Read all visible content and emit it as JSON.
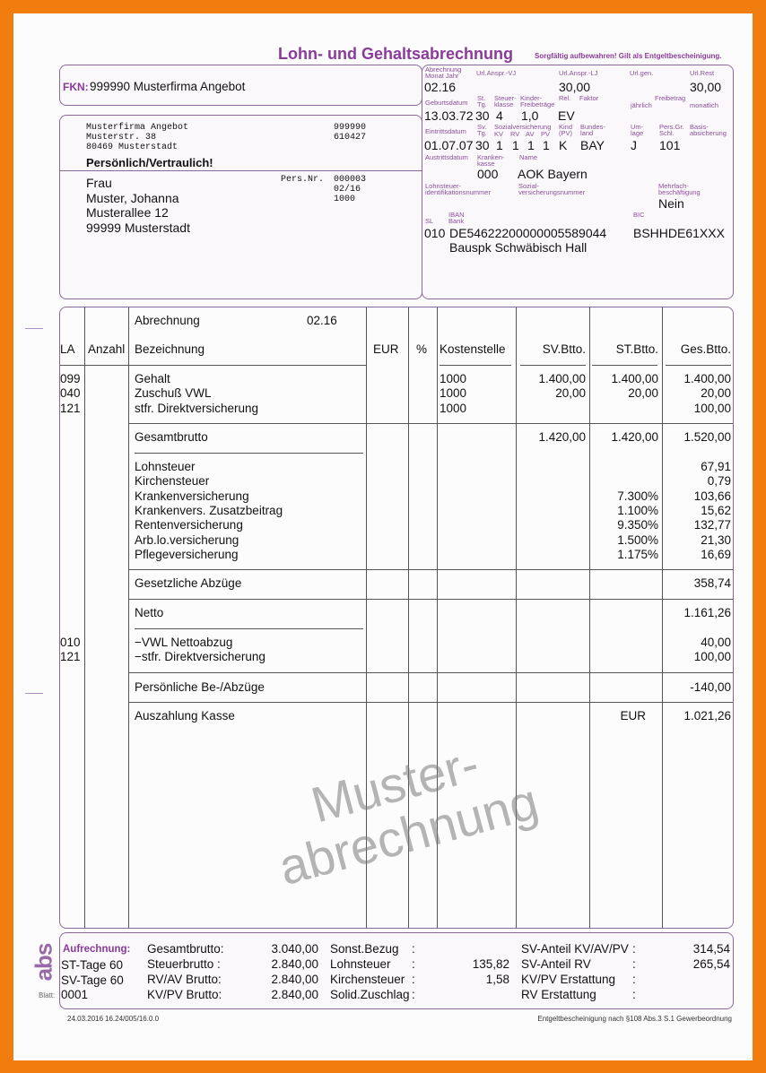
{
  "title": "Lohn- und Gehaltsabrechnung",
  "subtitle": "Sorgfältig aufbewahren! Gilt als Entgeltbescheinigung.",
  "fkn": {
    "label": "FKN:",
    "value": "999990 Musterfirma Angebot"
  },
  "employer": {
    "lines": [
      "Musterfirma Angebot",
      "Musterstr. 38",
      "80469  Musterstadt"
    ],
    "numbers": [
      "999990",
      "610427"
    ]
  },
  "confidential": "Persönlich/Vertraulich!",
  "recipient": {
    "lines": [
      "Frau",
      "Muster, Johanna",
      "Musterallee 12",
      "99999 Musterstadt"
    ],
    "persnr_label": "Pers.Nr.",
    "persnr": [
      "000003",
      "02/16",
      "1000"
    ]
  },
  "info": {
    "labels": {
      "abrechnung": "Abrechnung Monat  Jahr",
      "url_vj": "Url.Anspr.-VJ",
      "url_lj": "Url.Anspr.-LJ",
      "url_gen": "Url.gen.",
      "url_rest": "Url.Rest",
      "geburtsdatum": "Geburtsdatum",
      "st_tg": "St. Tg.",
      "steuerklasse": "Steuer- klasse",
      "kinderfb": "Kinder- Freibeträge",
      "rel": "Rel.",
      "faktor": "Faktor",
      "jaehrlich": "jährlich",
      "freibetrag": "Freibetrag",
      "monatlich": "monatlich",
      "eintritt": "Eintrittsdatum",
      "sv_tg": "Sv. Tg.",
      "sozialvers": "Sozialversicherung",
      "kv": "KV",
      "rv": "RV",
      "av": "AV",
      "pv": "PV",
      "kind_pv": "Kind (PV)",
      "bundesland": "Bundes- land",
      "umlage": "Um- lage",
      "persgr": "Pers.Gr. Schl.",
      "basis": "Basis- absicherung",
      "austritt": "Austrittsdatum",
      "krankenkasse": "Kranken- kasse",
      "name": "Name",
      "lstid": "Lohnsteuer- identifikationsnummer",
      "svnr": "Sozial- versicherungsnummer",
      "mehrfach": "Mehrfach- beschäftigung",
      "sl": "SL",
      "iban": "IBAN",
      "bank": "Bank",
      "bic": "BIC"
    },
    "abrechnung": "02.16",
    "url_lj": "30,00",
    "url_rest": "30,00",
    "geburtsdatum": "13.03.72",
    "st_tg": "30",
    "steuerklasse": "4",
    "kinderfb": "1,0",
    "rel": "EV",
    "eintritt": "01.07.07",
    "sv_tg": "30",
    "kv": "1",
    "rv": "1",
    "av": "1",
    "pv": "1",
    "kind_pv": "K",
    "bundesland": "BAY",
    "umlage": "J",
    "persgr": "101",
    "kk_nr": "000",
    "kk_name": "AOK Bayern",
    "mehrfach": "Nein",
    "sl": "010",
    "iban": "DE54622200000005589044",
    "bank": "Bauspk Schwäbisch Hall",
    "bic": "BSHHDE61XXX"
  },
  "table": {
    "abrechnung_label": "Abrechnung",
    "abrechnung_value": "02.16",
    "headers": {
      "la": "LA",
      "anzahl": "Anzahl",
      "bez": "Bezeichnung",
      "eur": "EUR",
      "pct": "%",
      "kst": "Kostenstelle",
      "sv": "SV.Btto.",
      "st": "ST.Btto.",
      "ges": "Ges.Btto."
    },
    "rows": [
      {
        "la": "099",
        "bez": "Gehalt",
        "kst": "1000",
        "sv": "1.400,00",
        "st": "1.400,00",
        "ges": "1.400,00"
      },
      {
        "la": "040",
        "bez": "Zuschuß VWL",
        "kst": "1000",
        "sv": "20,00",
        "st": "20,00",
        "ges": "20,00"
      },
      {
        "la": "121",
        "bez": "stfr. Direktversicherung",
        "kst": "1000",
        "ges": "100,00"
      },
      {
        "bez": "Gesamtbrutto",
        "sv": "1.420,00",
        "st": "1.420,00",
        "ges": "1.520,00"
      },
      {
        "bez": "Lohnsteuer",
        "ges": "67,91"
      },
      {
        "bez": "Kirchensteuer",
        "ges": "0,79"
      },
      {
        "bez": "Krankenversicherung",
        "st": "7.300%",
        "ges": "103,66"
      },
      {
        "bez": "Krankenvers. Zusatzbeitrag",
        "st": "1.100%",
        "ges": "15,62"
      },
      {
        "bez": "Rentenversicherung",
        "st": "9.350%",
        "ges": "132,77"
      },
      {
        "bez": "Arb.lo.versicherung",
        "st": "1.500%",
        "ges": "21,30"
      },
      {
        "bez": "Pflegeversicherung",
        "st": "1.175%",
        "ges": "16,69"
      },
      {
        "bez": "Gesetzliche Abzüge",
        "ges": "358,74"
      },
      {
        "bez": "Netto",
        "ges": "1.161,26"
      },
      {
        "la": "010",
        "bez": "−VWL Nettoabzug",
        "ges": "40,00"
      },
      {
        "la": "121",
        "bez": "−stfr. Direktversicherung",
        "ges": "100,00"
      },
      {
        "bez": "Persönliche Be-/Abzüge",
        "ges": "-140,00"
      },
      {
        "bez": "Auszahlung Kasse",
        "st": "EUR",
        "ges": "1.021,26"
      }
    ]
  },
  "watermark": [
    "Muster-",
    "abrechnung"
  ],
  "summary": {
    "aufrechnung": "Aufrechnung:",
    "st_tage": "ST-Tage  60",
    "sv_tage": "SV-Tage  60",
    "blatt_label": "Blatt:",
    "blatt": "0001",
    "col2": [
      [
        "Gesamtbrutto:",
        "3.040,00"
      ],
      [
        "Steuerbrutto :",
        "2.840,00"
      ],
      [
        "RV/AV Brutto:",
        "2.840,00"
      ],
      [
        "KV/PV Brutto:",
        "2.840,00"
      ]
    ],
    "col3": [
      [
        "Sonst.Bezug",
        ":",
        ""
      ],
      [
        "Lohnsteuer",
        ":",
        "135,82"
      ],
      [
        "Kirchensteuer",
        ":",
        "1,58"
      ],
      [
        "Solid.Zuschlag",
        ":",
        ""
      ]
    ],
    "col4": [
      [
        "SV-Anteil KV/AV/PV",
        ":",
        "314,54"
      ],
      [
        "SV-Anteil RV",
        ":",
        "265,54"
      ],
      [
        "KV/PV Erstattung",
        ":",
        ""
      ],
      [
        "RV Erstattung",
        ":",
        ""
      ]
    ]
  },
  "footer": {
    "date": "24.03.2016",
    "code": "16.24/005/16.0.0",
    "note": "Entgeltbescheinigung nach §108 Abs.3 S.1 Gewerbeordnung"
  },
  "logo": "abs",
  "colors": {
    "frame": "#f07d0e",
    "accent": "#8a3a9a"
  }
}
